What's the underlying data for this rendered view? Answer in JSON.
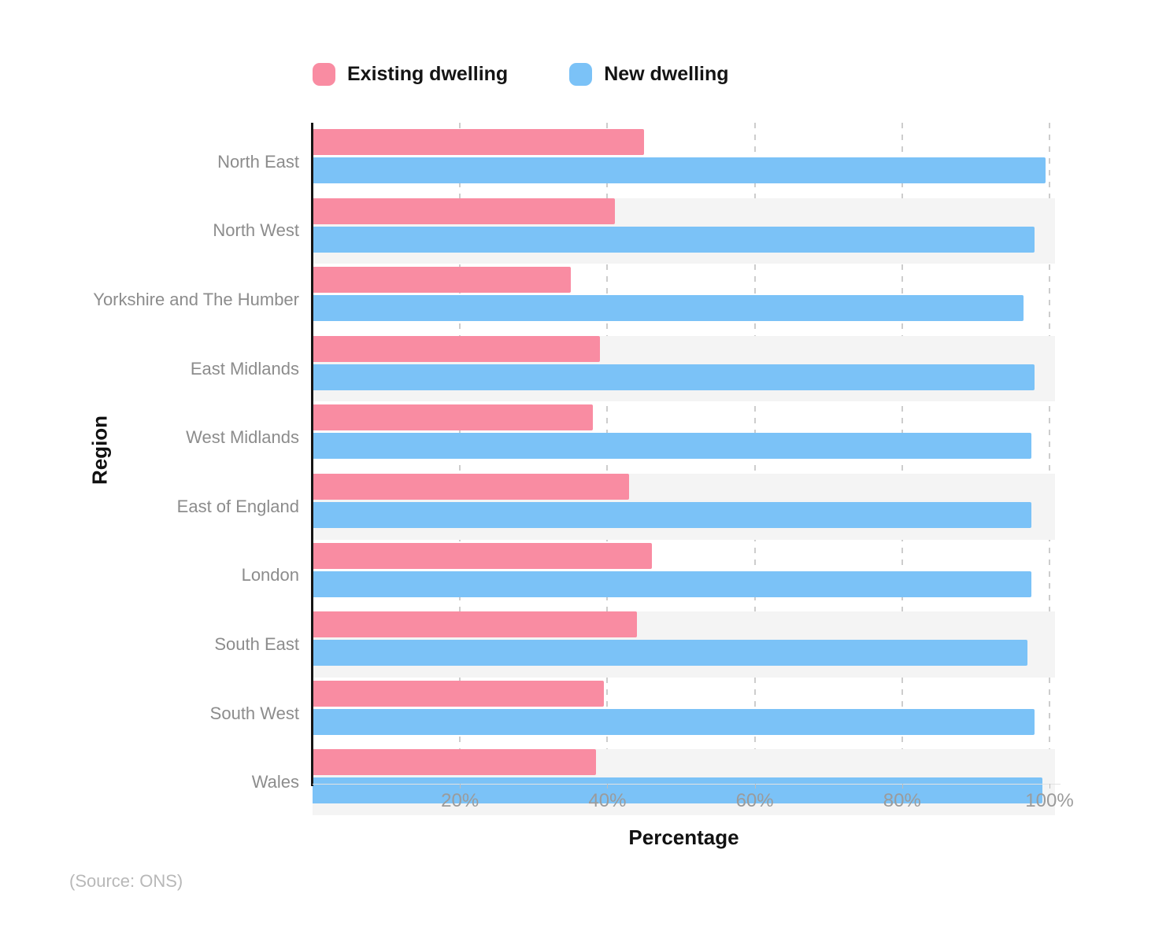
{
  "chart_data": {
    "type": "bar",
    "orientation": "horizontal",
    "title": "",
    "categories": [
      "North East",
      "North West",
      "Yorkshire and The Humber",
      "East Midlands",
      "West Midlands",
      "East of England",
      "London",
      "South East",
      "South West",
      "Wales"
    ],
    "series": [
      {
        "name": "Existing dwelling",
        "color": "#f98ca2",
        "values": [
          45,
          41,
          35,
          39,
          38,
          43,
          46,
          44,
          39.5,
          38.5
        ]
      },
      {
        "name": "New dwelling",
        "color": "#7bc2f7",
        "values": [
          99.5,
          98,
          96.5,
          98,
          97.5,
          97.5,
          97.5,
          97,
          98,
          99
        ]
      }
    ],
    "xlabel": "Percentage",
    "ylabel": "Region",
    "xlim": [
      0,
      100
    ],
    "x_ticks": [
      {
        "value": 20,
        "label": "20%"
      },
      {
        "value": 40,
        "label": "40%"
      },
      {
        "value": 60,
        "label": "60%"
      },
      {
        "value": 80,
        "label": "80%"
      },
      {
        "value": 100,
        "label": "100%"
      }
    ],
    "legend_position": "top",
    "grid": "vertical-dashed",
    "row_band_color": "#f4f4f4",
    "source_note": "(Source: ONS)"
  }
}
